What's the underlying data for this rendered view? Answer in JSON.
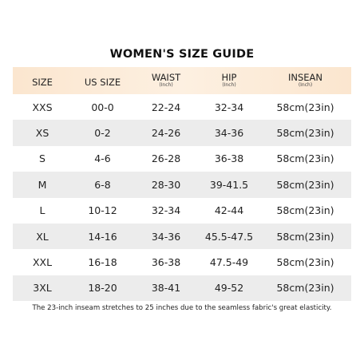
{
  "title": "WOMEN'S SIZE GUIDE",
  "headers": [
    {
      "label": "SIZE",
      "unit": ""
    },
    {
      "label": "US SIZE",
      "unit": ""
    },
    {
      "label": "WAIST",
      "unit": "(Inch)"
    },
    {
      "label": "HIP",
      "unit": "(Inch)"
    },
    {
      "label": "INSEAN",
      "unit": "(Inch)"
    }
  ],
  "rows": [
    [
      "XXS",
      "00-0",
      "22-24",
      "32-34",
      "58cm(23in)"
    ],
    [
      "XS",
      "0-2",
      "24-26",
      "34-36",
      "58cm(23in)"
    ],
    [
      "S",
      "4-6",
      "26-28",
      "36-38",
      "58cm(23in)"
    ],
    [
      "M",
      "6-8",
      "28-30",
      "39-41.5",
      "58cm(23in)"
    ],
    [
      "L",
      "10-12",
      "32-34",
      "42-44",
      "58cm(23in)"
    ],
    [
      "XL",
      "14-16",
      "34-36",
      "45.5-47.5",
      "58cm(23in)"
    ],
    [
      "XXL",
      "16-18",
      "36-38",
      "47.5-49",
      "58cm(23in)"
    ],
    [
      "3XL",
      "18-20",
      "38-41",
      "49-52",
      "58cm(23in)"
    ]
  ],
  "footnote": "The 23-inch inseam stretches to 25 inches due to the seamless fabric's great elasticity.",
  "colors": {
    "header_bg": "#fbe6cf",
    "row_shade": "#ececec",
    "row_plain": "#ffffff"
  }
}
